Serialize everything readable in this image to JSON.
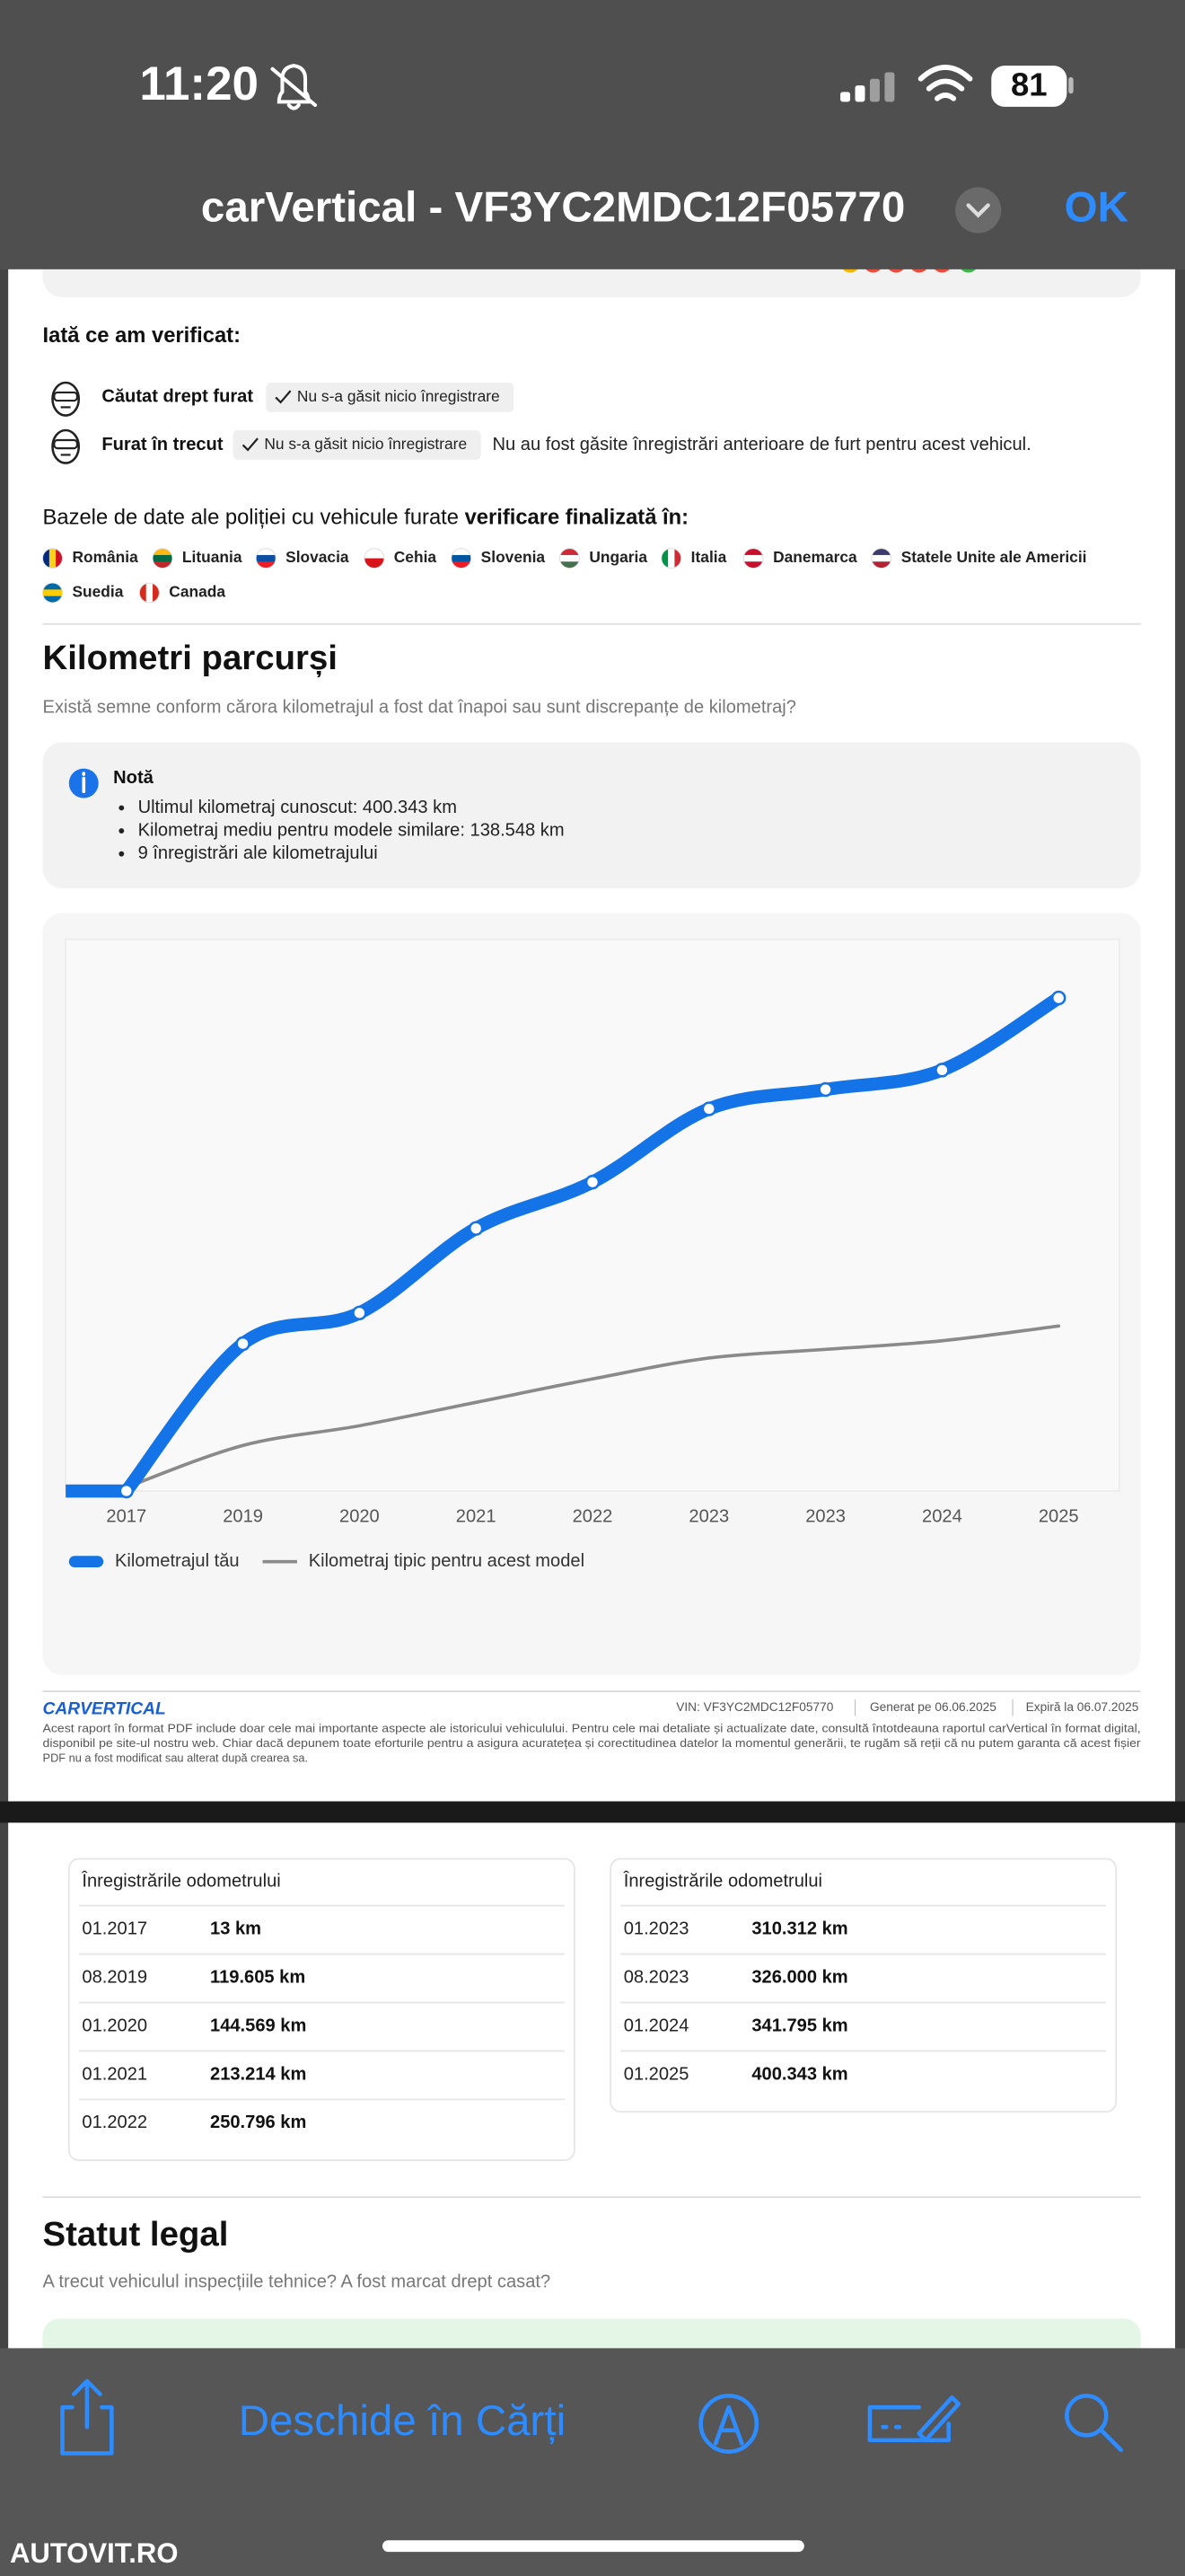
{
  "status_bar": {
    "time": "11:20",
    "battery": "81"
  },
  "nav": {
    "title": "carVertical - VF3YC2MDC12F05770",
    "done": "OK"
  },
  "theft": {
    "heading": "Iată ce am verificat:",
    "checks": [
      {
        "label": "Căutat drept furat",
        "badge": "Nu s-a găsit nicio înregistrare"
      },
      {
        "label": "Furat în trecut",
        "badge": "Nu s-a găsit nicio înregistrare",
        "note": "Nu au fost găsite înregistrări anterioare de furt pentru acest vehicul."
      }
    ],
    "databases_intro": "Bazele de date ale poliției cu vehicule furate ",
    "databases_status": "verificare finalizată în:",
    "countries": [
      "România",
      "Lituania",
      "Slovacia",
      "Cehia",
      "Slovenia",
      "Ungaria",
      "Italia",
      "Danemarca",
      "Statele Unite ale Americii",
      "Suedia",
      "Canada"
    ]
  },
  "mileage": {
    "heading": "Kilometri parcurși",
    "subtitle": "Există semne conform cărora kilometrajul a fost dat înapoi sau sunt discrepanțe de kilometraj?",
    "note_title": "Notă",
    "note_items": [
      "Ultimul kilometraj cunoscut: 400.343 km",
      "Kilometraj mediu pentru modele similare: 138.548 km",
      "9 înregistrări ale kilometrajului"
    ]
  },
  "chart_data": {
    "type": "line",
    "categories": [
      "2017",
      "2019",
      "2020",
      "2021",
      "2022",
      "2023",
      "2023",
      "2024",
      "2025"
    ],
    "series": [
      {
        "name": "Kilometrajul tău",
        "color": "#1473e6",
        "values": [
          13,
          119605,
          144569,
          213214,
          250796,
          310312,
          326000,
          341795,
          400343
        ]
      },
      {
        "name": "Kilometraj tipic pentru acest model",
        "color": "#8a8a8a",
        "values": [
          3000,
          37000,
          53000,
          72000,
          91000,
          108000,
          115000,
          122000,
          134000
        ]
      }
    ],
    "ylim": [
      0,
      448000
    ]
  },
  "footer": {
    "logo": "CARVERTICAL",
    "vin": "VIN: VF3YC2MDC12F05770",
    "generated": "Generat pe 06.06.2025",
    "expires": "Expiră la 06.07.2025",
    "disclaimer": [
      "Acest raport în format PDF include doar cele mai importante aspecte ale istoricului vehiculului. Pentru cele mai detaliate și actualizate date, consultă întotdeauna raportul carVertical în format digital,",
      "disponibil pe site-ul nostru web. Chiar dacă depunem toate eforturile pentru a asigura acuratețea și corectitudinea datelor la momentul generării, te rugăm să reții că nu putem garanta că acest fișier",
      "PDF nu a fost modificat sau alterat după crearea sa."
    ]
  },
  "odometer": {
    "tables": [
      {
        "title": "Înregistrările odometrului",
        "rows": [
          [
            "01.2017",
            "13 km"
          ],
          [
            "08.2019",
            "119.605 km"
          ],
          [
            "01.2020",
            "144.569 km"
          ],
          [
            "01.2021",
            "213.214 km"
          ],
          [
            "01.2022",
            "250.796 km"
          ]
        ]
      },
      {
        "title": "Înregistrările odometrului",
        "rows": [
          [
            "01.2023",
            "310.312 km"
          ],
          [
            "08.2023",
            "326.000 km"
          ],
          [
            "01.2024",
            "341.795 km"
          ],
          [
            "01.2025",
            "400.343 km"
          ]
        ]
      }
    ]
  },
  "legal": {
    "heading": "Statut legal",
    "subtitle": "A trecut vehiculul inspecțiile tehnice? A fost marcat drept casat?"
  },
  "toolbar": {
    "open_in_books": "Deschide în Cărți"
  },
  "watermark": "AUTOVIT.RO"
}
